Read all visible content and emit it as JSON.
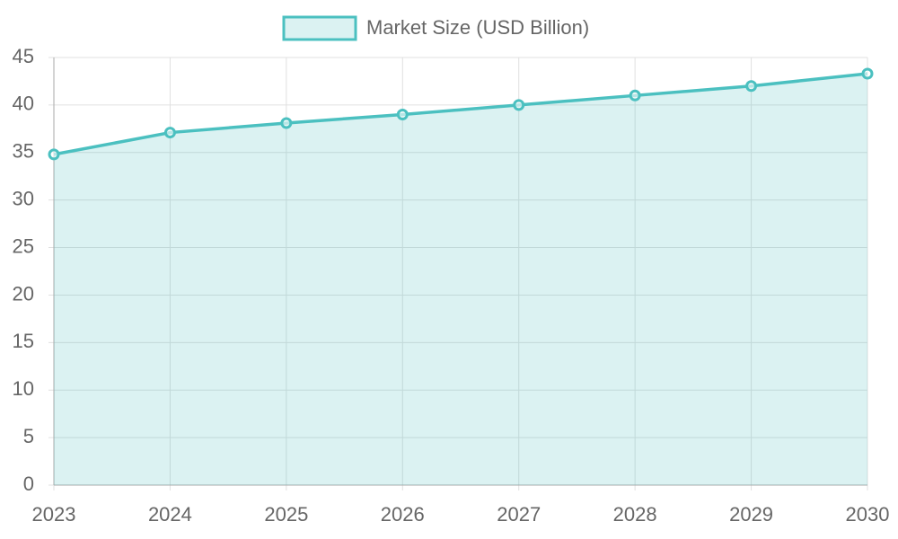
{
  "chart_data": {
    "type": "area",
    "categories": [
      "2023",
      "2024",
      "2025",
      "2026",
      "2027",
      "2028",
      "2029",
      "2030"
    ],
    "series": [
      {
        "name": "Market Size (USD Billion)",
        "color": "#4bc0c0",
        "values": [
          34.8,
          37.1,
          38.1,
          39.0,
          40.0,
          41.0,
          42.0,
          43.3
        ]
      }
    ],
    "ylim": [
      0,
      45
    ],
    "yticks": [
      0,
      5,
      10,
      15,
      20,
      25,
      30,
      35,
      40,
      45
    ],
    "grid": true,
    "legend": "top"
  }
}
